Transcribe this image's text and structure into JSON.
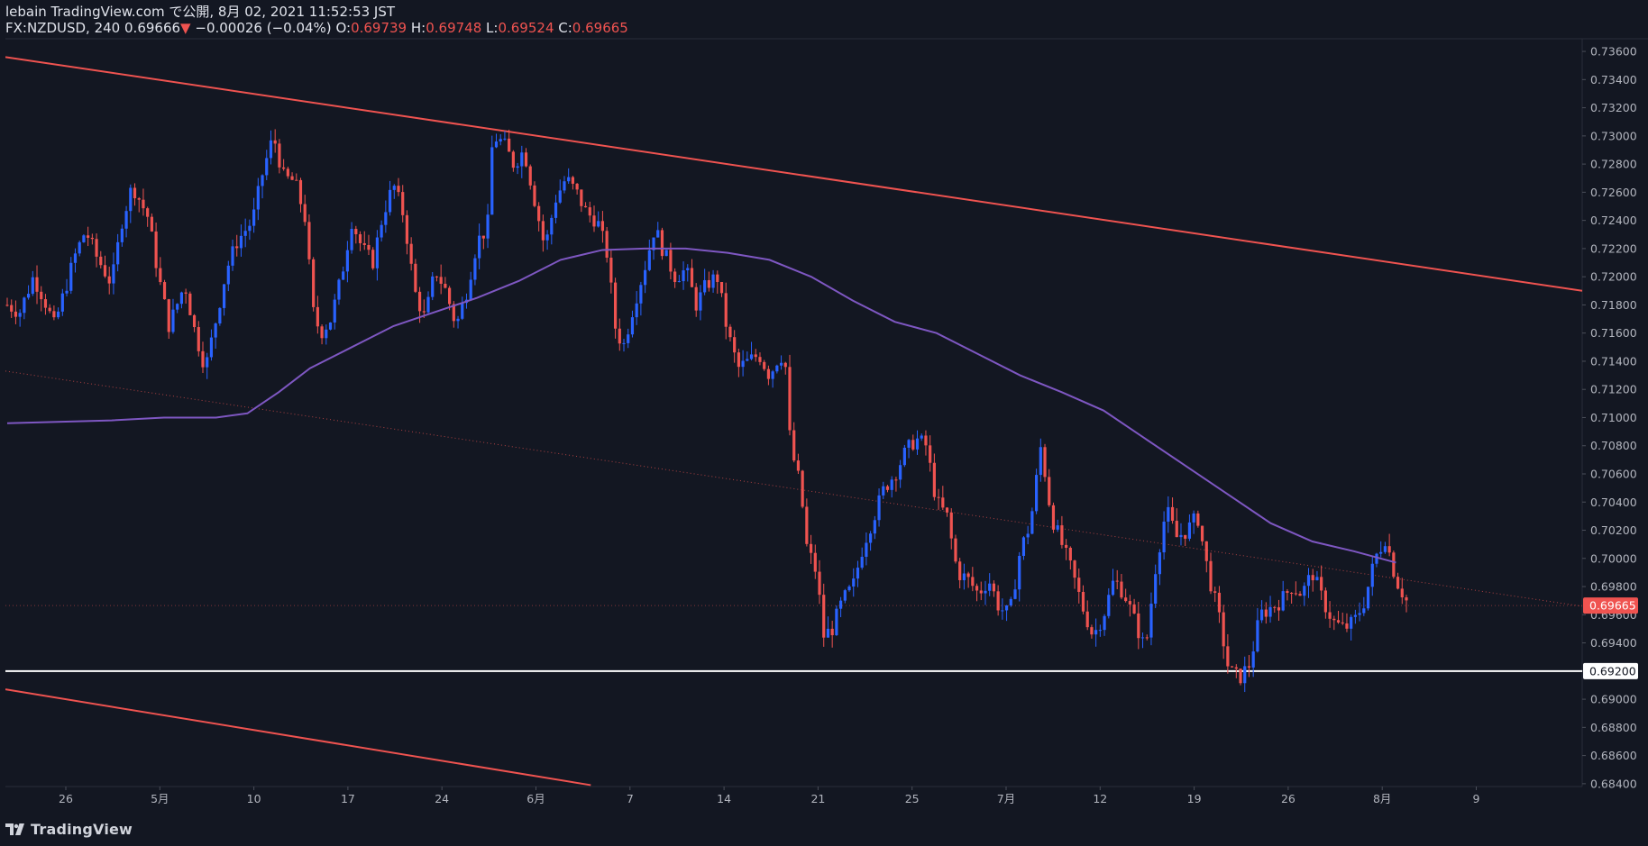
{
  "header": {
    "publisher": "lebain TradingView.com で公開, 8月 02, 2021 11:52:53 JST",
    "symbol": "FX:NZDUSD, 240",
    "last": "0.69666",
    "change": "−0.00026 (−0.04%)",
    "o_label": "O:",
    "o_value": "0.69739",
    "h_label": "H:",
    "h_value": "0.69748",
    "l_label": "L:",
    "l_value": "0.69524",
    "c_label": "C:",
    "c_value": "0.69665"
  },
  "footer": {
    "logo_text": "TradingView"
  },
  "colors": {
    "background": "#131722",
    "up_candle": "#2962ff",
    "down_candle": "#ef5350",
    "moving_average": "#7e57c2",
    "trendline": "#ef5350",
    "support_line": "#ffffff",
    "axis_text": "#b2b5be"
  },
  "chart_data": {
    "type": "candlestick",
    "symbol": "FX:NZDUSD",
    "interval": "240",
    "x_ticks": [
      "26",
      "5月",
      "10",
      "17",
      "24",
      "6月",
      "7",
      "14",
      "21",
      "25",
      "7月",
      "12",
      "19",
      "26",
      "8月",
      "9"
    ],
    "y_ticks": [
      "0.73600",
      "0.73400",
      "0.73200",
      "0.73000",
      "0.72800",
      "0.72600",
      "0.72400",
      "0.72200",
      "0.72000",
      "0.71800",
      "0.71600",
      "0.71400",
      "0.71200",
      "0.71000",
      "0.70800",
      "0.70600",
      "0.70400",
      "0.70200",
      "0.70000",
      "0.69800",
      "0.69600",
      "0.69400",
      "0.69200",
      "0.69000",
      "0.68800",
      "0.68600",
      "0.68400"
    ],
    "ylim": [
      0.6838,
      0.7369
    ],
    "current_price_label": "0.69665",
    "current_price": 0.69665,
    "support_label": "0.69200",
    "support_level": 0.692,
    "close_path": [
      [
        0,
        0.718
      ],
      [
        0.012,
        0.7175
      ],
      [
        0.025,
        0.72
      ],
      [
        0.035,
        0.7185
      ],
      [
        0.045,
        0.7165
      ],
      [
        0.055,
        0.719
      ],
      [
        0.065,
        0.7215
      ],
      [
        0.075,
        0.7233
      ],
      [
        0.085,
        0.7215
      ],
      [
        0.1,
        0.7195
      ],
      [
        0.11,
        0.724
      ],
      [
        0.12,
        0.7265
      ],
      [
        0.135,
        0.7242
      ],
      [
        0.145,
        0.72
      ],
      [
        0.155,
        0.7165
      ],
      [
        0.17,
        0.7195
      ],
      [
        0.18,
        0.716
      ],
      [
        0.19,
        0.7135
      ],
      [
        0.2,
        0.717
      ],
      [
        0.21,
        0.7205
      ],
      [
        0.22,
        0.7225
      ],
      [
        0.235,
        0.724
      ],
      [
        0.245,
        0.7275
      ],
      [
        0.255,
        0.73
      ],
      [
        0.265,
        0.727
      ],
      [
        0.275,
        0.7268
      ],
      [
        0.285,
        0.7243
      ],
      [
        0.293,
        0.7175
      ],
      [
        0.3,
        0.716
      ],
      [
        0.31,
        0.717
      ],
      [
        0.32,
        0.72
      ],
      [
        0.33,
        0.724
      ],
      [
        0.34,
        0.722
      ],
      [
        0.35,
        0.721
      ],
      [
        0.36,
        0.7245
      ],
      [
        0.37,
        0.7265
      ],
      [
        0.38,
        0.7243
      ],
      [
        0.39,
        0.719
      ],
      [
        0.4,
        0.717
      ],
      [
        0.41,
        0.7205
      ],
      [
        0.42,
        0.719
      ],
      [
        0.43,
        0.7165
      ],
      [
        0.44,
        0.719
      ],
      [
        0.45,
        0.7225
      ],
      [
        0.46,
        0.7235
      ],
      [
        0.465,
        0.73
      ],
      [
        0.475,
        0.7295
      ],
      [
        0.485,
        0.728
      ],
      [
        0.495,
        0.729
      ],
      [
        0.505,
        0.7255
      ],
      [
        0.515,
        0.722
      ],
      [
        0.525,
        0.7255
      ],
      [
        0.535,
        0.727
      ],
      [
        0.545,
        0.726
      ],
      [
        0.555,
        0.7245
      ],
      [
        0.565,
        0.724
      ],
      [
        0.575,
        0.7215
      ],
      [
        0.582,
        0.7165
      ],
      [
        0.59,
        0.715
      ],
      [
        0.6,
        0.718
      ],
      [
        0.61,
        0.7205
      ],
      [
        0.62,
        0.7235
      ],
      [
        0.63,
        0.7215
      ],
      [
        0.64,
        0.72
      ],
      [
        0.65,
        0.7205
      ],
      [
        0.66,
        0.718
      ],
      [
        0.67,
        0.7195
      ],
      [
        0.68,
        0.72
      ],
      [
        0.69,
        0.716
      ],
      [
        0.7,
        0.7135
      ],
      [
        0.71,
        0.714
      ],
      [
        0.72,
        0.7145
      ],
      [
        0.73,
        0.713
      ],
      [
        0.74,
        0.7145
      ],
      [
        0.745,
        0.714
      ],
      [
        0.75,
        0.708
      ],
      [
        0.76,
        0.705
      ],
      [
        0.765,
        0.701
      ],
      [
        0.775,
        0.699
      ],
      [
        0.782,
        0.6945
      ],
      [
        0.79,
        0.695
      ],
      [
        0.8,
        0.697
      ],
      [
        0.81,
        0.698
      ],
      [
        0.82,
        0.701
      ],
      [
        0.83,
        0.703
      ],
      [
        0.84,
        0.705
      ],
      [
        0.85,
        0.706
      ],
      [
        0.86,
        0.7075
      ],
      [
        0.87,
        0.7085
      ],
      [
        0.88,
        0.708
      ],
      [
        0.89,
        0.704
      ],
      [
        0.9,
        0.703
      ],
      [
        0.91,
        0.699
      ],
      [
        0.92,
        0.6985
      ],
      [
        0.93,
        0.6975
      ],
      [
        0.94,
        0.6985
      ],
      [
        0.95,
        0.6965
      ],
      [
        0.96,
        0.696
      ],
      [
        0.97,
        0.7005
      ],
      [
        0.98,
        0.7025
      ],
      [
        0.99,
        0.708
      ],
      [
        1.0,
        0.703
      ],
      [
        1.01,
        0.701
      ],
      [
        1.02,
        0.699
      ],
      [
        1.03,
        0.6965
      ],
      [
        1.04,
        0.6945
      ],
      [
        1.05,
        0.696
      ],
      [
        1.06,
        0.6985
      ],
      [
        1.07,
        0.6975
      ],
      [
        1.08,
        0.6955
      ],
      [
        1.09,
        0.6935
      ],
      [
        1.1,
        0.6995
      ],
      [
        1.11,
        0.7035
      ],
      [
        1.12,
        0.7015
      ],
      [
        1.13,
        0.702
      ],
      [
        1.14,
        0.703
      ],
      [
        1.15,
        0.699
      ],
      [
        1.16,
        0.696
      ],
      [
        1.17,
        0.692
      ],
      [
        1.18,
        0.6915
      ],
      [
        1.19,
        0.6925
      ],
      [
        1.2,
        0.696
      ],
      [
        1.21,
        0.6965
      ],
      [
        1.22,
        0.697
      ],
      [
        1.23,
        0.698
      ],
      [
        1.24,
        0.6975
      ],
      [
        1.25,
        0.699
      ],
      [
        1.26,
        0.697
      ],
      [
        1.27,
        0.6955
      ],
      [
        1.28,
        0.695
      ],
      [
        1.29,
        0.6955
      ],
      [
        1.3,
        0.697
      ],
      [
        1.31,
        0.7
      ],
      [
        1.32,
        0.7015
      ],
      [
        1.33,
        0.6985
      ],
      [
        1.34,
        0.697
      ]
    ],
    "moving_average": [
      [
        0,
        0.7096
      ],
      [
        0.1,
        0.7098
      ],
      [
        0.15,
        0.71
      ],
      [
        0.2,
        0.71
      ],
      [
        0.23,
        0.7103
      ],
      [
        0.26,
        0.7118
      ],
      [
        0.29,
        0.7135
      ],
      [
        0.33,
        0.715
      ],
      [
        0.37,
        0.7165
      ],
      [
        0.41,
        0.7175
      ],
      [
        0.45,
        0.7185
      ],
      [
        0.49,
        0.7197
      ],
      [
        0.53,
        0.7212
      ],
      [
        0.57,
        0.7219
      ],
      [
        0.61,
        0.722
      ],
      [
        0.65,
        0.722
      ],
      [
        0.69,
        0.7217
      ],
      [
        0.73,
        0.7212
      ],
      [
        0.77,
        0.72
      ],
      [
        0.81,
        0.7183
      ],
      [
        0.85,
        0.7168
      ],
      [
        0.89,
        0.716
      ],
      [
        0.93,
        0.7145
      ],
      [
        0.97,
        0.713
      ],
      [
        1.01,
        0.7118
      ],
      [
        1.05,
        0.7105
      ],
      [
        1.09,
        0.7085
      ],
      [
        1.13,
        0.7065
      ],
      [
        1.17,
        0.7045
      ],
      [
        1.21,
        0.7025
      ],
      [
        1.25,
        0.7012
      ],
      [
        1.29,
        0.7005
      ],
      [
        1.33,
        0.6997
      ]
    ],
    "trendlines": [
      {
        "x1": 0.0,
        "y1": 0.7356,
        "x2": 1.495,
        "y2": 0.719,
        "style": "solid"
      },
      {
        "x1": 0.0,
        "y1": 0.6907,
        "x2": 0.555,
        "y2": 0.6839,
        "style": "solid"
      },
      {
        "x1": 0.0,
        "y1": 0.7133,
        "x2": 1.495,
        "y2": 0.6966,
        "style": "dotted"
      }
    ],
    "grid": false,
    "legend": "none"
  }
}
